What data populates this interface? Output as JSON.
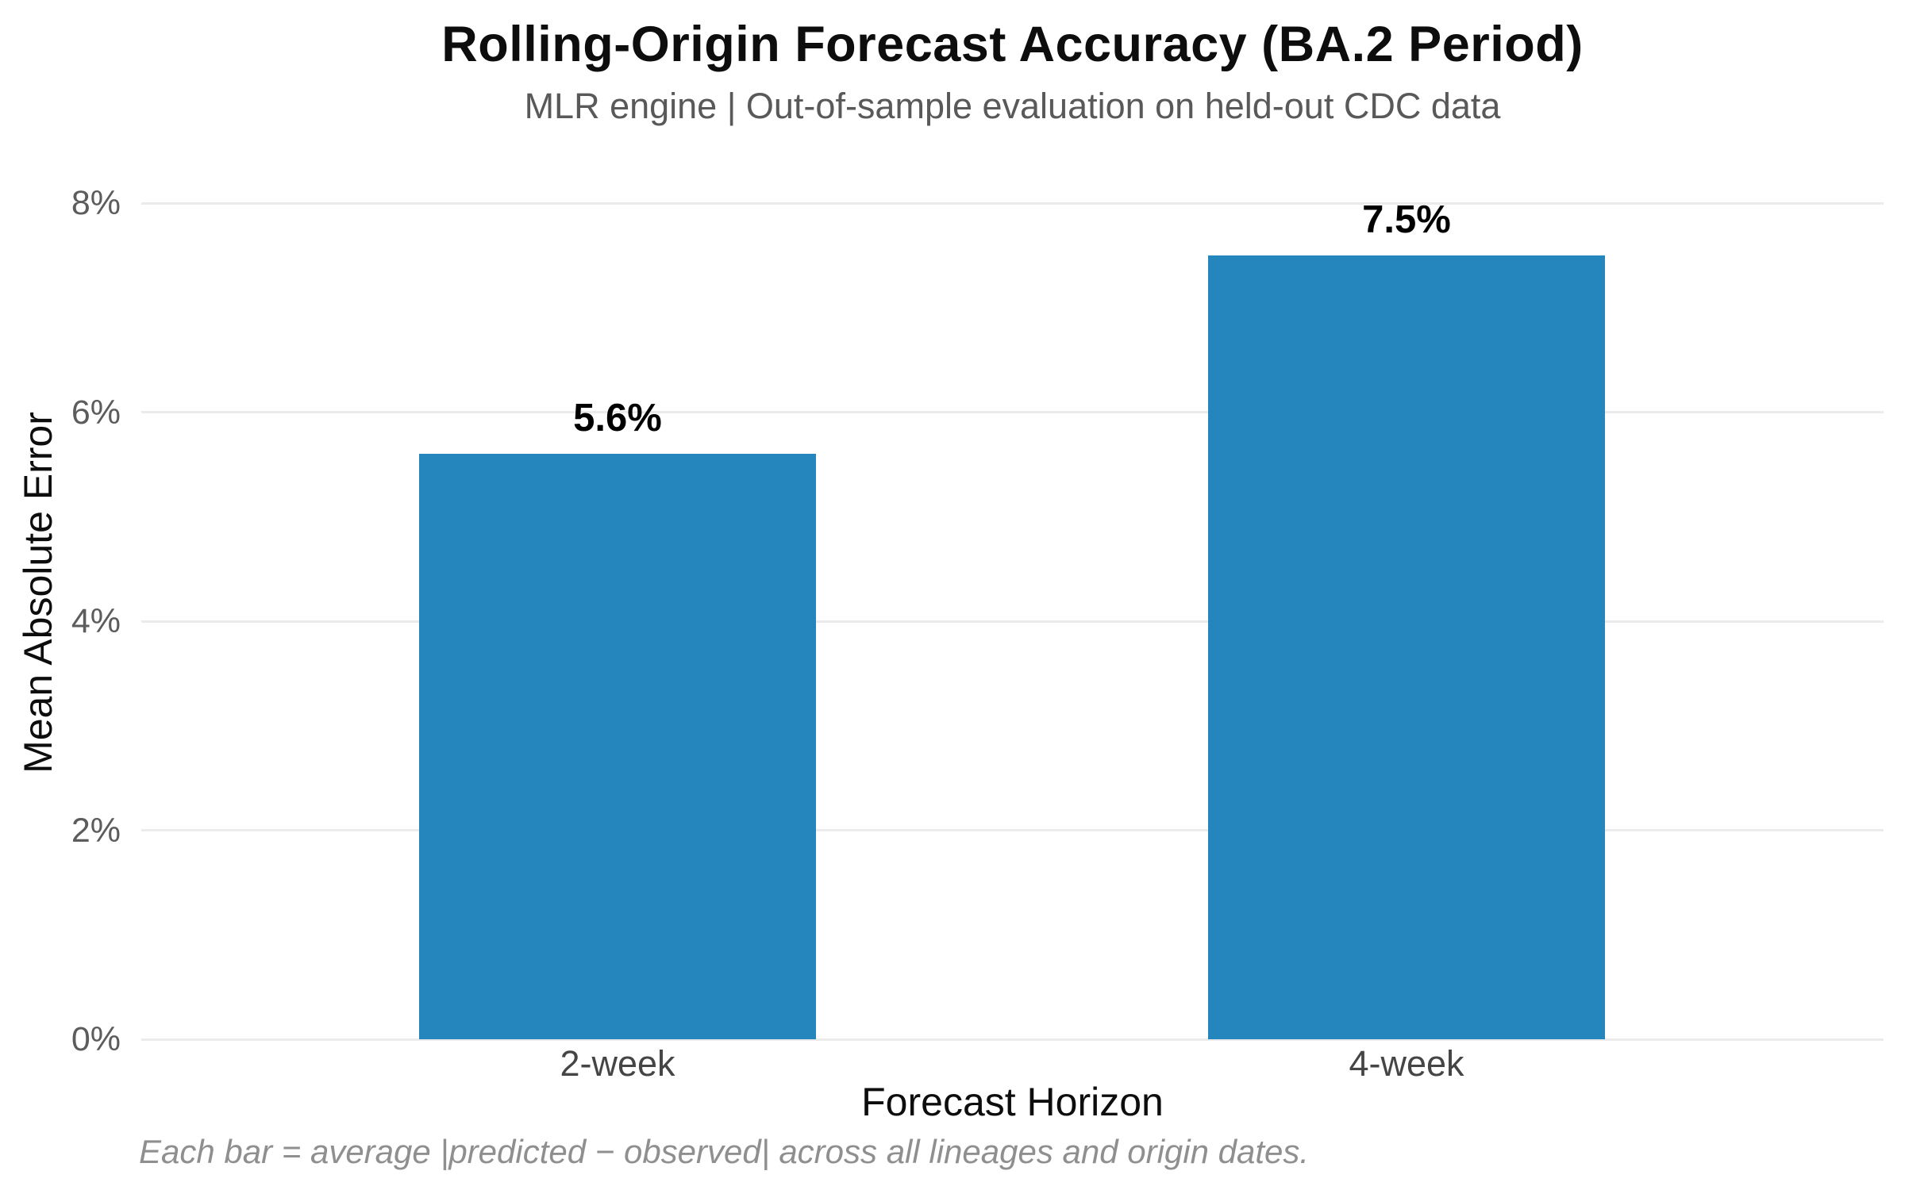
{
  "chart_data": {
    "type": "bar",
    "title": "Rolling-Origin Forecast Accuracy (BA.2 Period)",
    "subtitle": "MLR engine | Out-of-sample evaluation on held-out CDC data",
    "xlabel": "Forecast Horizon",
    "ylabel": "Mean Absolute Error",
    "categories": [
      "2-week",
      "4-week"
    ],
    "values": [
      5.6,
      7.5
    ],
    "value_labels": [
      "5.6%",
      "7.5%"
    ],
    "yticks": [
      0,
      2,
      4,
      6,
      8
    ],
    "ytick_labels": [
      "0%",
      "2%",
      "4%",
      "6%",
      "8%"
    ],
    "ylim": [
      0,
      8
    ],
    "grid": true,
    "legend": "none",
    "footnote": "Each bar = average |predicted − observed| across all lineages and origin dates.",
    "bar_color": "#2585bd"
  }
}
